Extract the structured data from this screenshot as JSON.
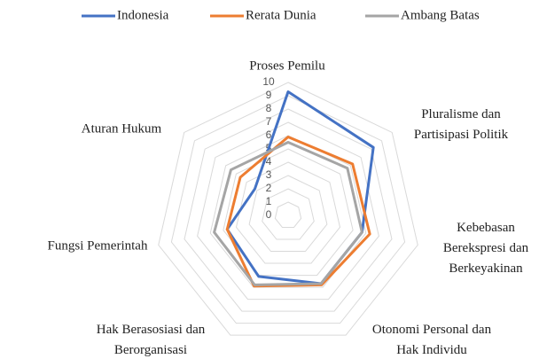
{
  "chart_data": {
    "type": "radar",
    "categories": [
      "Proses Pemilu",
      "Pluralisme dan\nPartisipasi Politik",
      "Kebebasan\nBerekspresi dan\nBerkeyakinan",
      "Otonomi Personal dan\nHak Individu",
      "Hak Berasosiasi dan\nBerorganisasi",
      "Fungsi Pemerintah",
      "Aturan Hukum"
    ],
    "series": [
      {
        "name": "Indonesia",
        "color": "#4472c4",
        "values": [
          9.3,
          8.2,
          5.7,
          5.7,
          5.1,
          4.7,
          3.2
        ]
      },
      {
        "name": "Rerata Dunia",
        "color": "#ed7d31",
        "values": [
          5.9,
          6.2,
          6.3,
          5.8,
          5.9,
          4.7,
          4.6
        ]
      },
      {
        "name": "Ambang Batas",
        "color": "#a5a5a5",
        "values": [
          5.5,
          5.7,
          5.7,
          5.7,
          5.8,
          5.7,
          5.5
        ]
      }
    ],
    "rlim": [
      0,
      10
    ],
    "rticks": [
      0,
      1,
      2,
      3,
      4,
      5,
      6,
      7,
      8,
      9,
      10
    ],
    "grid": true,
    "legend": "top"
  }
}
